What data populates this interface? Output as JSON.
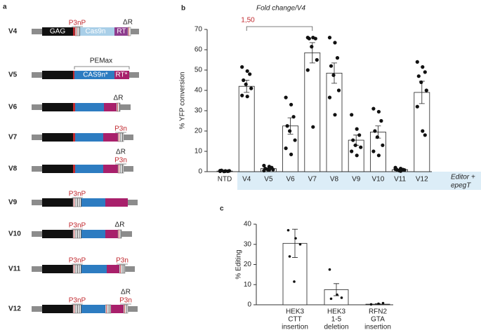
{
  "diagram": {
    "panel": "a",
    "rows": [
      {
        "label": "V4",
        "gag": "GAG",
        "p3np": "P3nP",
        "cas9": "Cas9n",
        "rt": "RT",
        "dr": "ΔR"
      },
      {
        "label": "V5",
        "pemax": "PEMax",
        "cas9": "CAS9n*",
        "rt": "RT*"
      },
      {
        "label": "V6",
        "dr": "ΔR"
      },
      {
        "label": "V7",
        "p3n": "P3n"
      },
      {
        "label": "V8",
        "dr": "ΔR",
        "p3n": "P3n"
      },
      {
        "label": "V9",
        "p3np": "P3nP"
      },
      {
        "label": "V10",
        "p3np": "P3nP",
        "dr": "ΔR"
      },
      {
        "label": "V11",
        "p3np": "P3nP",
        "p3n": "P3n"
      },
      {
        "label": "V12",
        "dr": "ΔR",
        "p3np": "P3nP",
        "p3n": "P3n"
      }
    ]
  },
  "chart_data": [
    {
      "type": "bar",
      "panel": "b",
      "title": "Fold change/V4",
      "annotation": "1,50",
      "group_label": [
        "Editor +",
        "epegT"
      ],
      "ylabel": "% YFP conversion",
      "categories": [
        "NTD",
        "V4",
        "V5",
        "V6",
        "V7",
        "V8",
        "V9",
        "V10",
        "V11",
        "V12"
      ],
      "values": [
        0.3,
        42,
        1.5,
        22.5,
        58.5,
        48.5,
        15.5,
        19.5,
        1,
        39
      ],
      "errors": [
        0.1,
        3,
        0.4,
        4,
        5,
        5,
        2.5,
        3,
        0.3,
        5.5
      ],
      "points": [
        [
          0.5,
          0.3,
          0.2,
          0.6,
          0.1,
          0.4,
          0.2,
          0.3
        ],
        [
          51.5,
          49.5,
          48,
          45,
          43,
          41,
          37.5,
          37
        ],
        [
          3,
          2.5,
          2,
          1.5,
          1,
          1,
          0.5,
          0.8
        ],
        [
          36.5,
          33,
          27,
          22.5,
          20,
          15.5,
          11.5,
          8.5
        ],
        [
          66,
          66,
          65.5,
          65.5,
          61.5,
          55,
          50,
          22
        ],
        [
          66,
          63.5,
          56,
          52,
          47.5,
          40,
          36.5,
          28
        ],
        [
          28,
          21,
          18,
          15.5,
          13,
          12,
          10,
          8
        ],
        [
          31,
          29.5,
          25,
          20,
          17,
          13,
          10,
          8
        ],
        [
          2,
          1.5,
          1,
          1,
          0.5,
          0.8,
          1.2,
          0.3
        ],
        [
          54,
          51.5,
          49,
          47,
          44,
          40,
          32,
          20,
          18
        ]
      ],
      "color": "#ffffff",
      "ylim": [
        0,
        70
      ],
      "yticks": [
        0,
        10,
        20,
        30,
        40,
        50,
        60,
        70
      ]
    },
    {
      "type": "bar",
      "panel": "c",
      "ylabel": "% Editing",
      "categories": [
        [
          "HEK3",
          "CTT",
          "insertion"
        ],
        [
          "HEK3",
          "1-5",
          "deletion"
        ],
        [
          "RFN2",
          "GTA",
          "insertion"
        ]
      ],
      "values": [
        30.5,
        7.5,
        0.3
      ],
      "errors": [
        7,
        3,
        0.3
      ],
      "points": [
        [
          37,
          33,
          30,
          24,
          11.5
        ],
        [
          17.5,
          5,
          3.5,
          3
        ],
        [
          0.2,
          0.5,
          0.8
        ]
      ],
      "color": "#ffffff",
      "ylim": [
        0,
        40
      ],
      "yticks": [
        0,
        10,
        20,
        30,
        40
      ]
    }
  ]
}
